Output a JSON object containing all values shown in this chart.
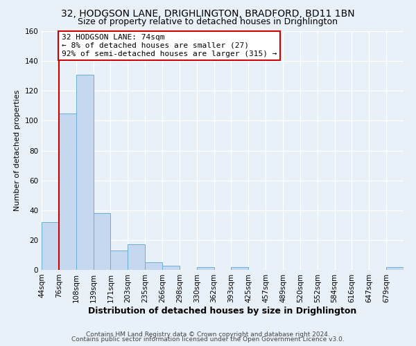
{
  "title_line1": "32, HODGSON LANE, DRIGHLINGTON, BRADFORD, BD11 1BN",
  "title_line2": "Size of property relative to detached houses in Drighlington",
  "xlabel": "Distribution of detached houses by size in Drighlington",
  "ylabel": "Number of detached properties",
  "bar_labels": [
    "44sqm",
    "76sqm",
    "108sqm",
    "139sqm",
    "171sqm",
    "203sqm",
    "235sqm",
    "266sqm",
    "298sqm",
    "330sqm",
    "362sqm",
    "393sqm",
    "425sqm",
    "457sqm",
    "489sqm",
    "520sqm",
    "552sqm",
    "584sqm",
    "616sqm",
    "647sqm",
    "679sqm"
  ],
  "bar_values": [
    32,
    105,
    131,
    38,
    13,
    17,
    5,
    3,
    0,
    2,
    0,
    2,
    0,
    0,
    0,
    0,
    0,
    0,
    0,
    0,
    2
  ],
  "bar_color": "#c5d8f0",
  "bar_edge_color": "#6aaed6",
  "ylim": [
    0,
    160
  ],
  "yticks": [
    0,
    20,
    40,
    60,
    80,
    100,
    120,
    140,
    160
  ],
  "annotation_title": "32 HODGSON LANE: 74sqm",
  "annotation_line2": "← 8% of detached houses are smaller (27)",
  "annotation_line3": "92% of semi-detached houses are larger (315) →",
  "annotation_box_color": "#ffffff",
  "annotation_box_edge": "#cc0000",
  "vline_color": "#cc0000",
  "footer_line1": "Contains HM Land Registry data © Crown copyright and database right 2024.",
  "footer_line2": "Contains public sector information licensed under the Open Government Licence v3.0.",
  "background_color": "#e8f0f8",
  "plot_background": "#e8f0f8",
  "grid_color": "#ffffff",
  "title_fontsize": 10,
  "subtitle_fontsize": 9,
  "ylabel_fontsize": 8,
  "xlabel_fontsize": 9,
  "tick_fontsize": 7.5,
  "annot_fontsize": 8,
  "footer_fontsize": 6.5,
  "vline_bin_index": 1
}
